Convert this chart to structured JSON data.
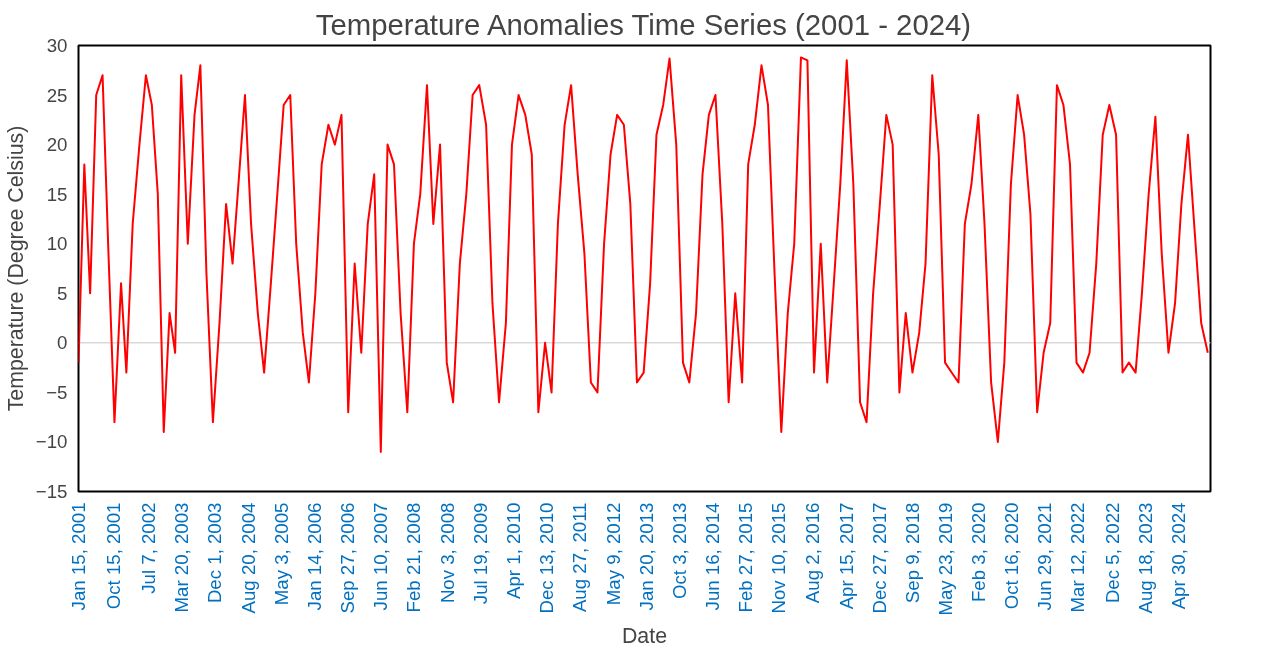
{
  "chart_data": {
    "type": "line",
    "title": "Temperature Anomalies Time Series (2001 - 2024)",
    "xlabel": "Date",
    "ylabel": "Temperature (Degree Celsius)",
    "xlim": [
      "2001-01-15",
      "2024-12-31"
    ],
    "ylim": [
      -15,
      30
    ],
    "yticks": [
      -15,
      -10,
      -5,
      0,
      5,
      10,
      15,
      20,
      25,
      30
    ],
    "xticks": [
      {
        "value": "2001-01-15",
        "label": "Jan 15, 2001"
      },
      {
        "value": "2001-10-15",
        "label": "Oct 15, 2001"
      },
      {
        "value": "2002-07-07",
        "label": "Jul 7, 2002"
      },
      {
        "value": "2003-03-20",
        "label": "Mar 20, 2003"
      },
      {
        "value": "2003-12-01",
        "label": "Dec 1, 2003"
      },
      {
        "value": "2004-08-20",
        "label": "Aug 20, 2004"
      },
      {
        "value": "2005-05-03",
        "label": "May 3, 2005"
      },
      {
        "value": "2006-01-14",
        "label": "Jan 14, 2006"
      },
      {
        "value": "2006-09-27",
        "label": "Sep 27, 2006"
      },
      {
        "value": "2007-06-10",
        "label": "Jun 10, 2007"
      },
      {
        "value": "2008-02-21",
        "label": "Feb 21, 2008"
      },
      {
        "value": "2008-11-03",
        "label": "Nov 3, 2008"
      },
      {
        "value": "2009-07-19",
        "label": "Jul 19, 2009"
      },
      {
        "value": "2010-04-01",
        "label": "Apr 1, 2010"
      },
      {
        "value": "2010-12-13",
        "label": "Dec 13, 2010"
      },
      {
        "value": "2011-08-27",
        "label": "Aug 27, 2011"
      },
      {
        "value": "2012-05-09",
        "label": "May 9, 2012"
      },
      {
        "value": "2013-01-20",
        "label": "Jan 20, 2013"
      },
      {
        "value": "2013-10-03",
        "label": "Oct 3, 2013"
      },
      {
        "value": "2014-06-16",
        "label": "Jun 16, 2014"
      },
      {
        "value": "2015-02-27",
        "label": "Feb 27, 2015"
      },
      {
        "value": "2015-11-10",
        "label": "Nov 10, 2015"
      },
      {
        "value": "2016-08-02",
        "label": "Aug 2, 2016"
      },
      {
        "value": "2017-04-15",
        "label": "Apr 15, 2017"
      },
      {
        "value": "2017-12-27",
        "label": "Dec 27, 2017"
      },
      {
        "value": "2018-09-09",
        "label": "Sep 9, 2018"
      },
      {
        "value": "2019-05-23",
        "label": "May 23, 2019"
      },
      {
        "value": "2020-02-03",
        "label": "Feb 3, 2020"
      },
      {
        "value": "2020-10-16",
        "label": "Oct 16, 2020"
      },
      {
        "value": "2021-06-29",
        "label": "Jun 29, 2021"
      },
      {
        "value": "2022-03-12",
        "label": "Mar 12, 2022"
      },
      {
        "value": "2022-12-05",
        "label": "Dec 5, 2022"
      },
      {
        "value": "2023-08-18",
        "label": "Aug 18, 2023"
      },
      {
        "value": "2024-04-30",
        "label": "Apr 30, 2024"
      }
    ],
    "ref_lines": [
      {
        "axis": "y",
        "value": 0,
        "color": "#d9d9d9"
      }
    ],
    "grid": false,
    "series": [
      {
        "color": "#ff0000",
        "x": [
          "2001-01-15",
          "2001-03-01",
          "2001-04-15",
          "2001-06-01",
          "2001-07-20",
          "2001-09-01",
          "2001-10-20",
          "2001-12-10",
          "2002-01-20",
          "2002-03-10",
          "2002-05-01",
          "2002-06-20",
          "2002-08-05",
          "2002-09-20",
          "2002-11-05",
          "2002-12-20",
          "2003-02-01",
          "2003-03-20",
          "2003-05-10",
          "2003-07-01",
          "2003-08-15",
          "2003-10-01",
          "2003-11-20",
          "2004-01-10",
          "2004-03-01",
          "2004-04-20",
          "2004-06-10",
          "2004-07-25",
          "2004-09-10",
          "2004-11-01",
          "2004-12-20",
          "2005-02-10",
          "2005-04-01",
          "2005-05-20",
          "2005-07-10",
          "2005-08-25",
          "2005-10-15",
          "2005-12-01",
          "2006-01-20",
          "2006-03-10",
          "2006-05-01",
          "2006-06-20",
          "2006-08-10",
          "2006-10-01",
          "2006-11-20",
          "2007-01-10",
          "2007-03-01",
          "2007-04-20",
          "2007-06-10",
          "2007-08-01",
          "2007-09-20",
          "2007-11-10",
          "2008-01-01",
          "2008-02-21",
          "2008-04-10",
          "2008-06-01",
          "2008-07-20",
          "2008-09-10",
          "2008-11-01",
          "2008-12-20",
          "2009-02-10",
          "2009-04-01",
          "2009-05-20",
          "2009-07-10",
          "2009-09-01",
          "2009-10-20",
          "2009-12-10",
          "2010-02-01",
          "2010-03-20",
          "2010-05-10",
          "2010-07-01",
          "2010-08-20",
          "2010-10-10",
          "2010-12-01",
          "2011-01-20",
          "2011-03-10",
          "2011-05-01",
          "2011-06-20",
          "2011-08-10",
          "2011-10-01",
          "2011-11-20",
          "2012-01-10",
          "2012-03-01",
          "2012-04-20",
          "2012-06-10",
          "2012-08-01",
          "2012-09-20",
          "2012-11-10",
          "2013-01-01",
          "2013-02-20",
          "2013-04-10",
          "2013-06-01",
          "2013-07-20",
          "2013-09-10",
          "2013-11-01",
          "2013-12-20",
          "2014-02-10",
          "2014-04-01",
          "2014-05-20",
          "2014-07-10",
          "2014-09-01",
          "2014-10-20",
          "2014-12-10",
          "2015-02-01",
          "2015-03-20",
          "2015-05-10",
          "2015-07-01",
          "2015-08-20",
          "2015-10-10",
          "2015-12-01",
          "2016-01-20",
          "2016-03-10",
          "2016-05-01",
          "2016-06-20",
          "2016-08-10",
          "2016-10-01",
          "2016-11-20",
          "2017-01-10",
          "2017-03-01",
          "2017-04-20",
          "2017-06-10",
          "2017-08-01",
          "2017-09-20",
          "2017-11-10",
          "2018-01-01",
          "2018-02-20",
          "2018-04-10",
          "2018-06-01",
          "2018-07-20",
          "2018-09-10",
          "2018-11-01",
          "2018-12-20",
          "2019-02-10",
          "2019-04-01",
          "2019-05-20",
          "2019-07-10",
          "2019-09-01",
          "2019-10-20",
          "2019-12-10",
          "2020-02-01",
          "2020-03-20",
          "2020-05-10",
          "2020-07-01",
          "2020-08-20",
          "2020-10-10",
          "2020-12-01",
          "2021-01-20",
          "2021-03-10",
          "2021-05-01",
          "2021-06-20",
          "2021-08-10",
          "2021-10-01",
          "2021-11-20",
          "2022-01-10",
          "2022-03-01",
          "2022-04-20",
          "2022-06-10",
          "2022-08-01",
          "2022-09-20",
          "2022-11-10",
          "2023-01-01",
          "2023-02-20",
          "2023-04-10",
          "2023-06-01",
          "2023-07-20",
          "2023-09-10",
          "2023-11-01",
          "2023-12-20",
          "2024-02-10",
          "2024-04-01",
          "2024-05-20",
          "2024-07-10",
          "2024-09-01",
          "2024-10-20",
          "2024-12-10"
        ],
        "values": [
          -2,
          18,
          5,
          25,
          27,
          10,
          -8,
          6,
          -3,
          12,
          20,
          27,
          24,
          15,
          -9,
          3,
          -1,
          27,
          10,
          23,
          28,
          7,
          -8,
          2,
          14,
          8,
          17,
          25,
          12,
          3,
          -3,
          6,
          15,
          24,
          25,
          10,
          1,
          -4,
          5,
          18,
          22,
          20,
          23,
          -7,
          8,
          -1,
          12,
          17,
          -11,
          20,
          18,
          3,
          -7,
          10,
          15,
          26,
          12,
          20,
          -2,
          -6,
          8,
          15,
          25,
          26,
          22,
          4,
          -6,
          2,
          20,
          25,
          23,
          19,
          -7,
          0,
          -5,
          12,
          22,
          26,
          17,
          9,
          -4,
          -5,
          10,
          19,
          23,
          22,
          14,
          -4,
          -3,
          6,
          21,
          24,
          28.7,
          20,
          -2,
          -4,
          3,
          17,
          23,
          25,
          12,
          -6,
          5,
          -4,
          18,
          22,
          28,
          24,
          7,
          -9,
          3,
          10,
          28.8,
          28.5,
          -3,
          10,
          -4,
          6,
          16,
          28.5,
          16,
          -6,
          -8,
          5,
          14,
          23,
          20,
          -5,
          3,
          -3,
          1,
          8,
          27,
          19,
          -2,
          -3,
          -4,
          12,
          16,
          23,
          12,
          -4,
          -10,
          -2,
          16,
          25,
          21,
          13,
          -7,
          -1,
          2,
          26,
          24,
          18,
          -2,
          -3,
          -1,
          8,
          21,
          24,
          21,
          -3,
          -2,
          -3,
          5,
          15,
          22.8,
          9,
          -1,
          4,
          14,
          21,
          11,
          2,
          -1
        ]
      }
    ]
  }
}
